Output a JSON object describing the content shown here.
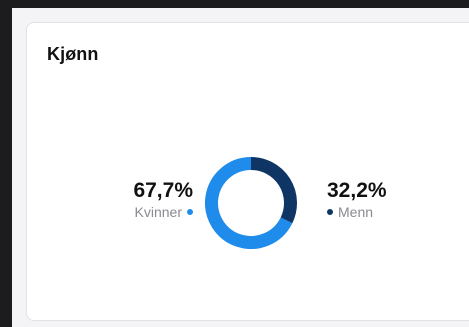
{
  "card": {
    "title": "Kjønn"
  },
  "segments": [
    {
      "label": "Kvinner",
      "value_text": "67,7%",
      "percent": 67.7,
      "color": "#1f8bea"
    },
    {
      "label": "Menn",
      "value_text": "32,2%",
      "percent": 32.2,
      "color": "#0f3564"
    }
  ],
  "chart_data": {
    "type": "pie",
    "categories": [
      "Kvinner",
      "Menn"
    ],
    "values": [
      67.7,
      32.2
    ],
    "colors": [
      "#1f8bea",
      "#0f3564"
    ]
  }
}
